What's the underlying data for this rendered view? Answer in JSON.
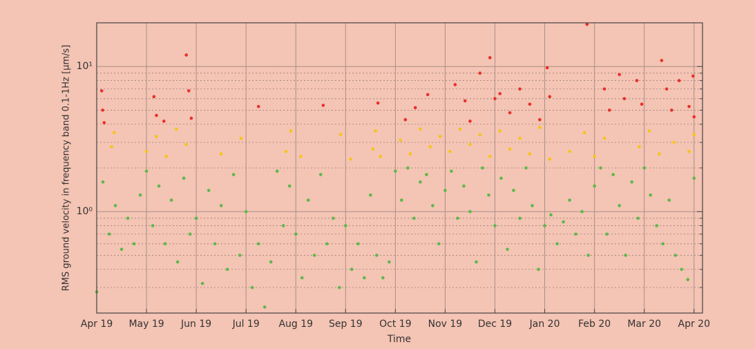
{
  "chart_data": {
    "type": "scatter",
    "x_label": "Time",
    "y_label": "RMS ground velocity in frequency band 0.1-1Hz [μm/s]",
    "xlim": [
      0,
      12.17
    ],
    "xticks": [
      {
        "value": 0,
        "label": "Apr 19"
      },
      {
        "value": 1,
        "label": "May 19"
      },
      {
        "value": 2,
        "label": "Jun 19"
      },
      {
        "value": 3,
        "label": "Jul 19"
      },
      {
        "value": 4,
        "label": "Aug 19"
      },
      {
        "value": 5,
        "label": "Sep 19"
      },
      {
        "value": 6,
        "label": "Oct 19"
      },
      {
        "value": 7,
        "label": "Nov 19"
      },
      {
        "value": 8,
        "label": "Dec 19"
      },
      {
        "value": 9,
        "label": "Jan 20"
      },
      {
        "value": 10,
        "label": "Feb 20"
      },
      {
        "value": 11,
        "label": "Mar 20"
      },
      {
        "value": 12,
        "label": "Apr 20"
      }
    ],
    "ylim": [
      0.2,
      20
    ],
    "yscale": "log",
    "yticks": [
      {
        "value": 1,
        "label": "10⁰"
      },
      {
        "value": 10,
        "label": "10¹"
      }
    ],
    "yminorticks": [
      0.3,
      0.4,
      0.5,
      0.6,
      0.7,
      0.8,
      0.9,
      2,
      3,
      4,
      5,
      6,
      7,
      8,
      9
    ],
    "grid": true,
    "series": [
      {
        "color": "#5cb84a",
        "x": [
          0,
          0.125,
          0.25,
          0.375,
          0.5,
          0.625,
          0.75,
          0.875,
          1,
          1.125,
          1.25,
          1.375,
          1.5,
          1.625,
          1.75,
          1.875,
          2,
          2.125,
          2.25,
          2.375,
          2.5,
          2.625,
          2.75,
          2.875,
          3,
          3.125,
          3.25,
          3.375,
          3.5,
          3.625,
          3.75,
          3.875,
          4,
          4.125,
          4.25,
          4.375,
          4.5,
          4.625,
          4.75,
          4.875,
          5,
          5.125,
          5.25,
          5.375,
          5.5,
          5.625,
          5.75,
          5.875,
          6,
          6.125,
          6.25,
          6.375,
          6.5,
          6.625,
          6.75,
          6.875,
          7,
          7.125,
          7.25,
          7.375,
          7.5,
          7.625,
          7.75,
          7.875,
          8,
          8.125,
          8.25,
          8.375,
          8.5,
          8.625,
          8.75,
          8.875,
          9,
          9.125,
          9.25,
          9.375,
          9.5,
          9.625,
          9.75,
          9.875,
          10,
          10.125,
          10.25,
          10.375,
          10.5,
          10.625,
          10.75,
          10.875,
          11,
          11.125,
          11.25,
          11.375,
          11.5,
          11.625,
          11.75,
          11.875,
          12
        ],
        "values": [
          0.28,
          1.6,
          0.7,
          1.1,
          0.55,
          0.9,
          0.6,
          1.3,
          1.9,
          0.8,
          1.5,
          0.6,
          1.2,
          0.45,
          1.7,
          0.7,
          0.9,
          0.32,
          1.4,
          0.6,
          1.1,
          0.4,
          1.8,
          0.5,
          1.0,
          0.3,
          0.6,
          0.22,
          0.45,
          1.9,
          0.8,
          1.5,
          0.7,
          0.35,
          1.2,
          0.5,
          1.8,
          0.6,
          0.9,
          0.3,
          0.8,
          0.4,
          0.6,
          0.35,
          1.3,
          0.5,
          0.35,
          0.45,
          1.9,
          1.2,
          2.0,
          0.9,
          1.6,
          1.8,
          1.1,
          0.6,
          1.4,
          1.9,
          0.9,
          1.5,
          1.0,
          0.45,
          2.0,
          1.3,
          0.8,
          1.7,
          0.55,
          1.4,
          0.9,
          2.0,
          1.1,
          0.4,
          0.8,
          0.95,
          0.6,
          0.85,
          1.2,
          0.7,
          1.0,
          0.5,
          1.5,
          2.0,
          0.7,
          1.8,
          1.1,
          0.5,
          1.6,
          0.9,
          2.0,
          1.3,
          0.8,
          0.6,
          1.2,
          0.5,
          0.4,
          0.34,
          1.7
        ]
      },
      {
        "color": "#f5c518",
        "x": [
          0.3,
          0.35,
          1.0,
          1.2,
          1.4,
          1.6,
          1.8,
          2.5,
          2.9,
          3.8,
          3.9,
          4.1,
          4.9,
          5.1,
          5.55,
          5.6,
          5.7,
          6.1,
          6.3,
          6.5,
          6.7,
          6.9,
          7.1,
          7.3,
          7.5,
          7.7,
          7.9,
          8.1,
          8.3,
          8.5,
          8.7,
          8.9,
          9.1,
          9.5,
          9.8,
          10.0,
          10.2,
          10.9,
          11.1,
          11.3,
          11.6,
          11.9,
          12.0
        ],
        "values": [
          2.8,
          3.5,
          2.6,
          3.3,
          2.4,
          3.7,
          2.9,
          2.5,
          3.2,
          2.6,
          3.6,
          2.4,
          3.4,
          2.3,
          2.7,
          3.6,
          2.4,
          3.1,
          2.5,
          3.7,
          2.8,
          3.3,
          2.6,
          3.7,
          2.9,
          3.4,
          2.4,
          3.6,
          2.7,
          3.2,
          2.5,
          3.8,
          2.3,
          2.6,
          3.5,
          2.4,
          3.2,
          2.8,
          3.6,
          2.5,
          3.0,
          2.6,
          3.4
        ]
      },
      {
        "color": "#e8302a",
        "x": [
          0.1,
          0.12,
          0.15,
          1.15,
          1.2,
          1.35,
          1.8,
          1.85,
          1.9,
          3.25,
          4.55,
          5.65,
          6.2,
          6.4,
          6.65,
          7.2,
          7.4,
          7.5,
          7.7,
          7.9,
          8.0,
          8.1,
          8.3,
          8.5,
          8.7,
          8.9,
          9.05,
          9.1,
          9.85,
          10.2,
          10.3,
          10.5,
          10.6,
          10.85,
          10.95,
          11.35,
          11.45,
          11.55,
          11.7,
          11.9,
          11.98,
          12.0
        ],
        "values": [
          6.8,
          5.0,
          4.1,
          6.2,
          4.6,
          4.2,
          12,
          6.8,
          4.4,
          5.3,
          5.4,
          5.6,
          4.3,
          5.2,
          6.4,
          7.5,
          5.8,
          4.2,
          9.0,
          11.5,
          6.0,
          6.5,
          4.8,
          7.0,
          5.5,
          4.3,
          9.8,
          6.2,
          19.5,
          7.0,
          5.0,
          8.8,
          6.0,
          8.0,
          5.5,
          11.0,
          7.0,
          5.0,
          8.0,
          5.3,
          8.6,
          4.5
        ]
      }
    ]
  }
}
